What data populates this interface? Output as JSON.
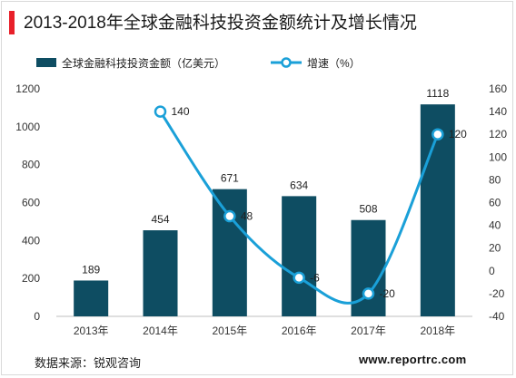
{
  "title": "2013-2018年全球金融科技投资金额统计及增长情况",
  "source": "数据来源：锐观咨询",
  "watermark": "www.reportrc.com",
  "colors": {
    "bar": "#0e4d62",
    "line": "#1aa0d8",
    "title_accent": "#e8202a"
  },
  "chart_data": {
    "type": "bar+line",
    "categories": [
      "2013年",
      "2014年",
      "2015年",
      "2016年",
      "2017年",
      "2018年"
    ],
    "series": [
      {
        "name": "全球金融科技投资金额（亿美元）",
        "type": "bar",
        "axis": "left",
        "values": [
          189,
          454,
          671,
          634,
          508,
          1118
        ],
        "labels": [
          "189",
          "454",
          "671",
          "634",
          "508",
          "1118"
        ]
      },
      {
        "name": "增速（%）",
        "type": "line",
        "axis": "right",
        "values": [
          null,
          140,
          48,
          -6,
          -20,
          120
        ],
        "labels": [
          "",
          "140",
          "48",
          "-6",
          "-20",
          "120"
        ]
      }
    ],
    "y_left": {
      "min": 0,
      "max": 1200,
      "ticks": [
        "0",
        "200",
        "400",
        "600",
        "800",
        "1000",
        "1200"
      ]
    },
    "y_right": {
      "min": -40,
      "max": 160,
      "ticks": [
        "-40",
        "-20",
        "0",
        "20",
        "40",
        "60",
        "80",
        "100",
        "120",
        "140",
        "160"
      ]
    },
    "legend_position": "top",
    "grid": false
  }
}
